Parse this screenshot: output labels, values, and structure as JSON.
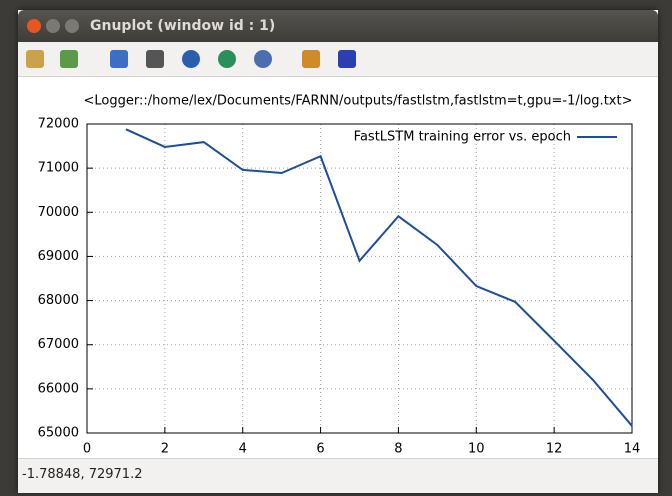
{
  "window": {
    "title": "Gnuplot (window id : 1)",
    "status": "-1.78848,  72971.2"
  },
  "chart_data": {
    "type": "line",
    "title": "<Logger::/home/lex/Documents/FARNN/outputs/fastlstm,fastlstm=t,gpu=-1/log.txt>",
    "x": [
      1,
      2,
      3,
      4,
      5,
      6,
      7,
      8,
      9,
      10,
      11,
      12,
      13,
      14
    ],
    "series": [
      {
        "name": "FastLSTM training error vs. epoch",
        "color": "#1d4e9e",
        "values": [
          71880,
          71480,
          71590,
          70960,
          70890,
          71270,
          68900,
          69910,
          69260,
          68330,
          67970,
          67090,
          66200,
          65160
        ]
      }
    ],
    "xlim": [
      0,
      14
    ],
    "xticks": [
      0,
      2,
      4,
      6,
      8,
      10,
      12,
      14
    ],
    "ylim": [
      65000,
      72000
    ],
    "yticks": [
      65000,
      66000,
      67000,
      68000,
      69000,
      70000,
      71000,
      72000
    ],
    "grid": true,
    "legend": "top-right"
  }
}
